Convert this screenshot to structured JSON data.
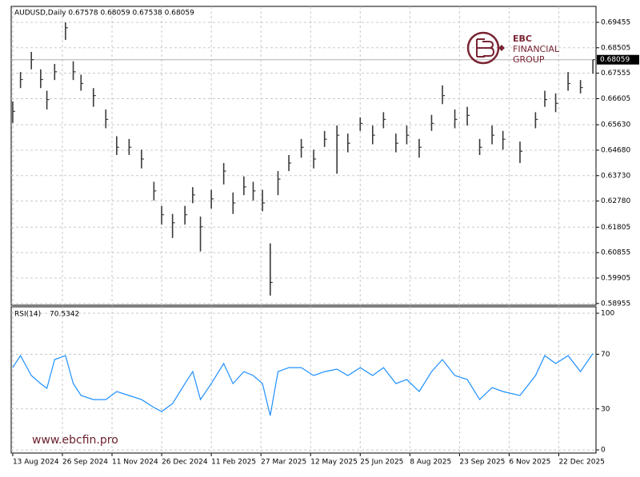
{
  "branding": {
    "logo_line1": "EBC",
    "logo_line2": "FINANCIAL",
    "logo_line3": "GROUP",
    "watermark": "www.ebcfin.pro"
  },
  "chart_data": [
    {
      "type": "ohlc",
      "header": "AUDUSD,Daily  0.67578 0.68059 0.67538 0.68059",
      "color": "#3a3a3a",
      "grid": true,
      "x": [
        0,
        5,
        12,
        18,
        22,
        27,
        34,
        39,
        44,
        52,
        60,
        67,
        75,
        83,
        91,
        96,
        103,
        111,
        116,
        121,
        128,
        136,
        142,
        149,
        155,
        161,
        166,
        171,
        178,
        186,
        194,
        201,
        209,
        216,
        224,
        232,
        239,
        247,
        254,
        262,
        270,
        277,
        285,
        293,
        301,
        309,
        316,
        327,
        337,
        343,
        350,
        358,
        366,
        374
      ],
      "high": [
        0.665,
        0.676,
        0.6835,
        0.677,
        0.669,
        0.679,
        0.6945,
        0.68,
        0.675,
        0.67,
        0.662,
        0.652,
        0.651,
        0.647,
        0.635,
        0.626,
        0.623,
        0.626,
        0.633,
        0.622,
        0.632,
        0.642,
        0.631,
        0.637,
        0.635,
        0.632,
        0.612,
        0.639,
        0.645,
        0.651,
        0.647,
        0.654,
        0.656,
        0.653,
        0.659,
        0.656,
        0.661,
        0.653,
        0.656,
        0.651,
        0.66,
        0.671,
        0.662,
        0.663,
        0.651,
        0.656,
        0.654,
        0.65,
        0.661,
        0.669,
        0.668,
        0.676,
        0.673,
        0.68059
      ],
      "low": [
        0.657,
        0.67,
        0.677,
        0.67,
        0.662,
        0.673,
        0.688,
        0.673,
        0.669,
        0.663,
        0.655,
        0.645,
        0.645,
        0.64,
        0.628,
        0.619,
        0.614,
        0.619,
        0.627,
        0.609,
        0.625,
        0.634,
        0.623,
        0.63,
        0.628,
        0.624,
        0.5925,
        0.63,
        0.639,
        0.644,
        0.64,
        0.648,
        0.638,
        0.646,
        0.654,
        0.649,
        0.655,
        0.646,
        0.649,
        0.644,
        0.654,
        0.664,
        0.655,
        0.656,
        0.645,
        0.649,
        0.647,
        0.642,
        0.655,
        0.663,
        0.661,
        0.669,
        0.668,
        0.67538
      ],
      "close": [
        0.6613,
        0.6732,
        0.6806,
        0.6732,
        0.6657,
        0.6761,
        0.6925,
        0.6761,
        0.6717,
        0.6672,
        0.6583,
        0.6479,
        0.6479,
        0.6435,
        0.6316,
        0.6227,
        0.6197,
        0.6227,
        0.6301,
        0.6182,
        0.6286,
        0.639,
        0.6271,
        0.6331,
        0.6316,
        0.6271,
        0.5974,
        0.636,
        0.642,
        0.6479,
        0.6435,
        0.6509,
        0.6524,
        0.6494,
        0.6568,
        0.6524,
        0.6583,
        0.6494,
        0.6524,
        0.6479,
        0.6568,
        0.6672,
        0.6583,
        0.6598,
        0.6479,
        0.6524,
        0.6509,
        0.6464,
        0.6583,
        0.6657,
        0.6643,
        0.6717,
        0.6702,
        0.68059
      ],
      "xlim": [
        -1,
        376
      ],
      "ylim": [
        0.5889,
        0.7005
      ],
      "yticks": [
        0.69455,
        0.68505,
        0.67555,
        0.66605,
        {
          "value": 0.6563,
          "label": "0.65630"
        },
        {
          "value": 0.6468,
          "label": "0.64680"
        },
        {
          "value": 0.6373,
          "label": "0.63730"
        },
        {
          "value": 0.6278,
          "label": "0.62780"
        },
        0.61805,
        0.60855,
        0.59905,
        0.58955
      ]
    },
    {
      "type": "line",
      "title": "RSI(14)",
      "color": "#1e90ff",
      "grid": true,
      "x": [
        0,
        5,
        12,
        18,
        22,
        27,
        34,
        39,
        44,
        52,
        60,
        67,
        75,
        83,
        91,
        96,
        103,
        111,
        116,
        121,
        128,
        136,
        142,
        149,
        155,
        161,
        166,
        171,
        178,
        186,
        194,
        201,
        209,
        216,
        224,
        232,
        239,
        247,
        254,
        262,
        270,
        277,
        285,
        293,
        301,
        309,
        316,
        327,
        337,
        343,
        350,
        358,
        366,
        374
      ],
      "values": [
        60.2,
        69,
        54.4,
        48.5,
        45,
        66.1,
        69,
        48.5,
        39.8,
        36.8,
        36.8,
        42.7,
        39.8,
        36.8,
        31,
        28.1,
        33.9,
        48.5,
        57.3,
        36.8,
        48.5,
        63.2,
        48.5,
        57.3,
        54.4,
        48.5,
        25.1,
        57.3,
        60.2,
        60.2,
        54.4,
        57.3,
        59.1,
        54.4,
        60.2,
        54.4,
        60.2,
        48.5,
        51.5,
        42.7,
        57.3,
        66.1,
        54.4,
        51.5,
        36.8,
        45.6,
        42.7,
        39.8,
        54.4,
        69,
        63.2,
        69,
        57.3,
        70.5342
      ],
      "xlim": [
        -1,
        376
      ],
      "ylim": [
        -2.3,
        104.7
      ],
      "yticks": [
        100,
        70,
        30,
        0
      ],
      "xticks": [
        {
          "value": 0,
          "label": "13 Aug 2024"
        },
        {
          "value": 32,
          "label": "26 Sep 2024"
        },
        {
          "value": 64,
          "label": "11 Nov 2024"
        },
        {
          "value": 96,
          "label": "26 Dec 2024"
        },
        {
          "value": 128,
          "label": "11 Feb 2025"
        },
        {
          "value": 160,
          "label": "27 Mar 2025"
        },
        {
          "value": 192,
          "label": "12 May 2025"
        },
        {
          "value": 224,
          "label": "25 Jun 2025"
        },
        {
          "value": 256,
          "label": "8 Aug 2025"
        },
        {
          "value": 288,
          "label": "23 Sep 2025"
        },
        {
          "value": 320,
          "label": "6 Nov 2025"
        },
        {
          "value": 352,
          "label": "22 Dec 2025"
        }
      ]
    }
  ]
}
